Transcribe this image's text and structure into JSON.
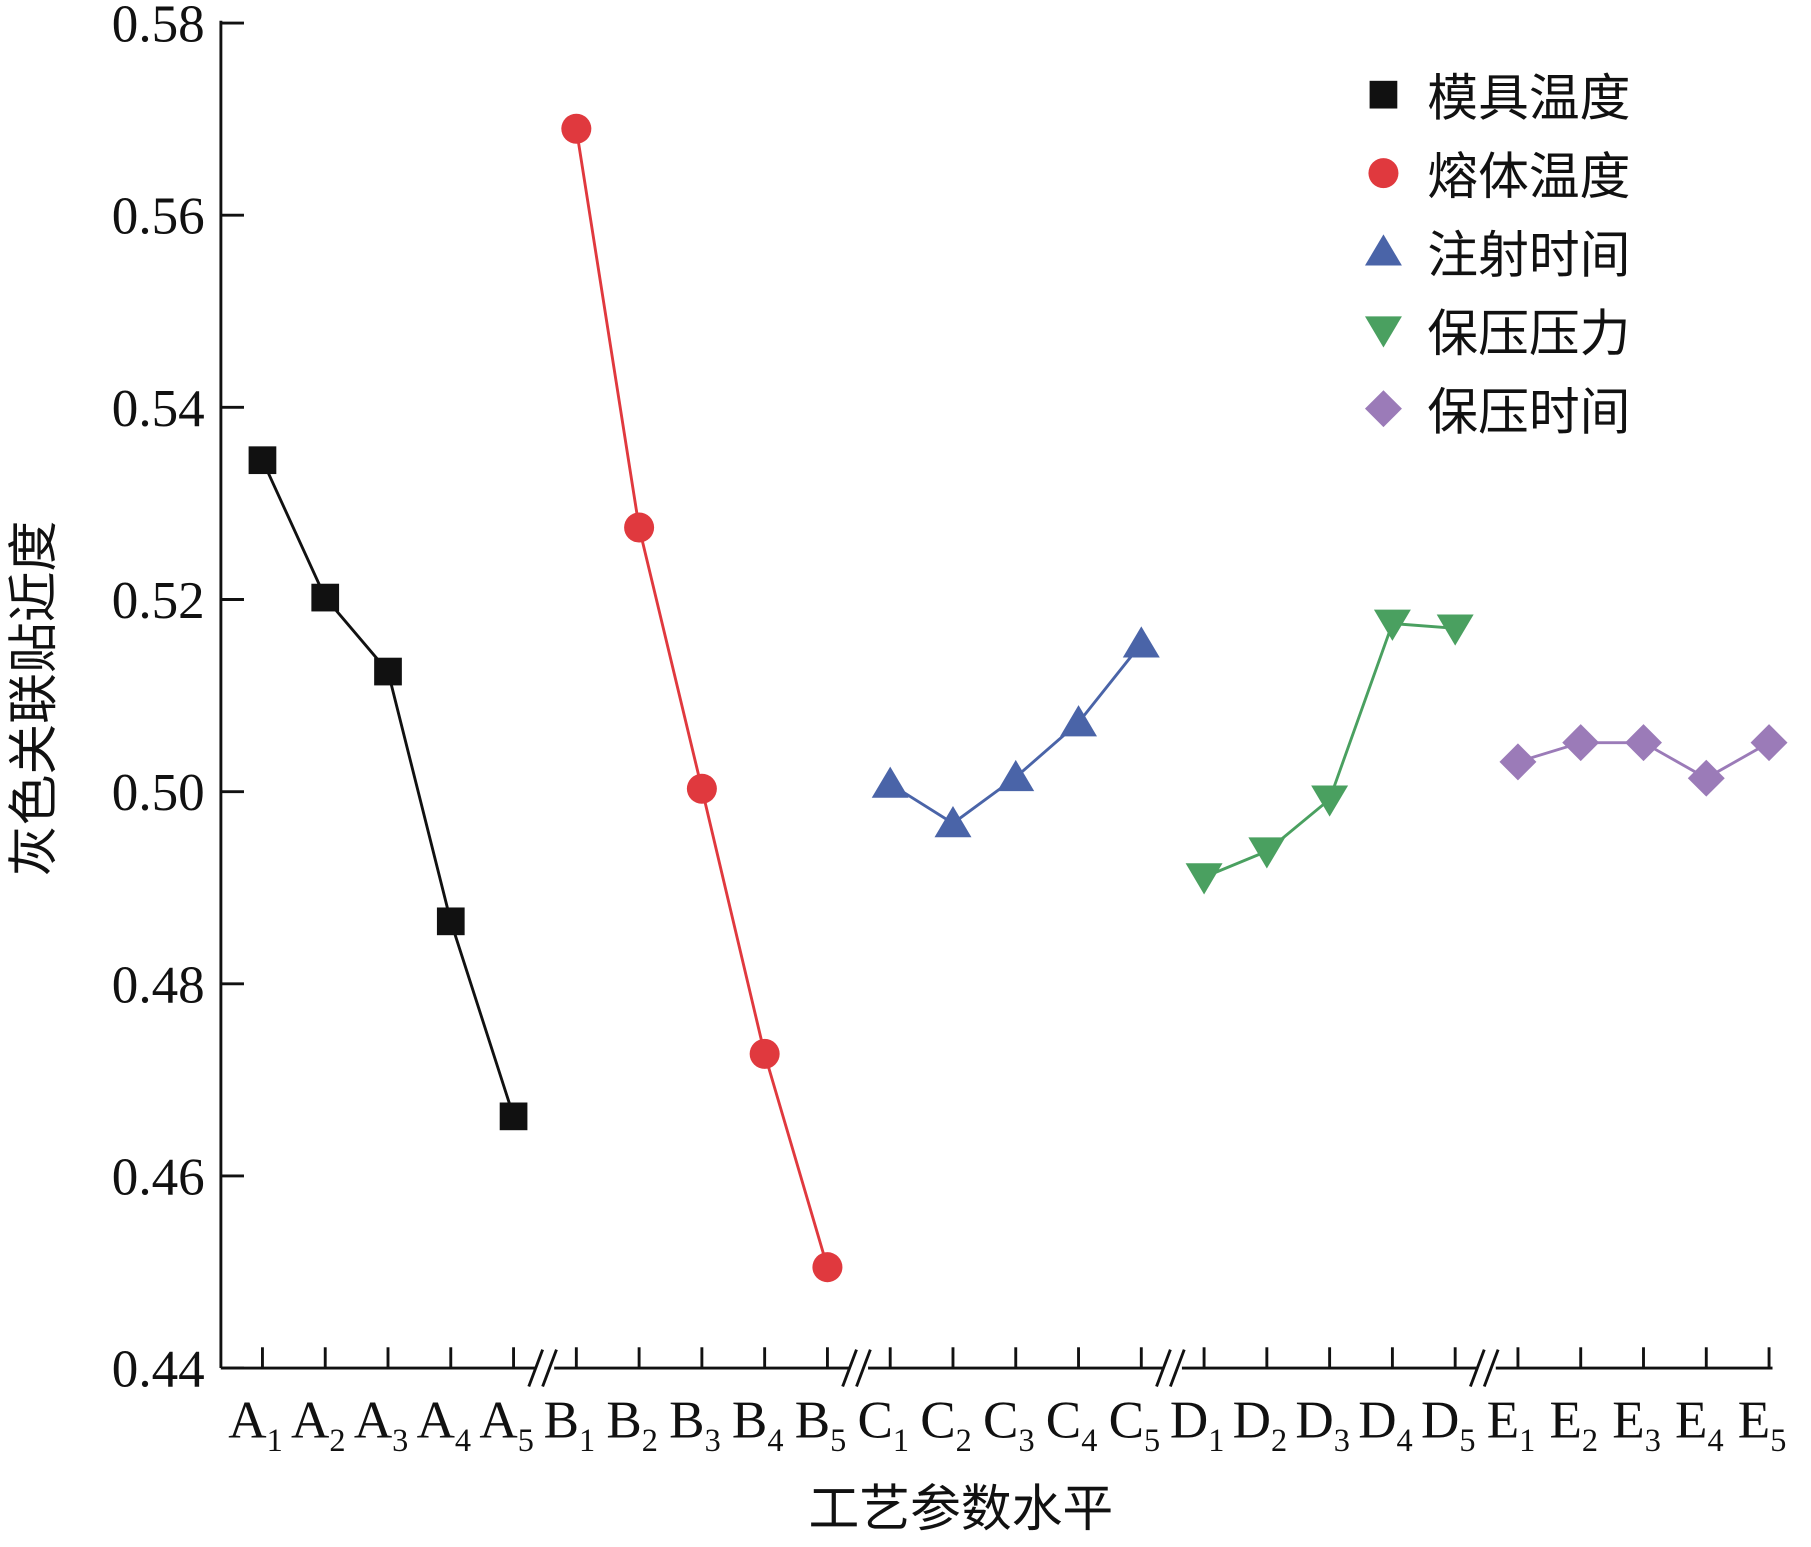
{
  "chart_data": {
    "type": "line",
    "xlabel": "工艺参数水平",
    "ylabel": "灰色关联贴近度",
    "categories": [
      "A1",
      "A2",
      "A3",
      "A4",
      "A5",
      "B1",
      "B2",
      "B3",
      "B4",
      "B5",
      "C1",
      "C2",
      "C3",
      "C4",
      "C5",
      "D1",
      "D2",
      "D3",
      "D4",
      "D5",
      "E1",
      "E2",
      "E3",
      "E4",
      "E5"
    ],
    "ylim": [
      0.44,
      0.58
    ],
    "yticks": [
      0.44,
      0.46,
      0.48,
      0.5,
      0.52,
      0.54,
      0.56,
      0.58
    ],
    "yticks_labels": [
      "0.44",
      "0.46",
      "0.48",
      "0.50",
      "0.52",
      "0.54",
      "0.56",
      "0.58"
    ],
    "legend": "upper right",
    "series": [
      {
        "name": "模具温度",
        "color": "#111111",
        "marker": "square",
        "values": [
          0.5345,
          0.5202,
          0.5125,
          0.4865,
          0.4662,
          null,
          null,
          null,
          null,
          null,
          null,
          null,
          null,
          null,
          null,
          null,
          null,
          null,
          null,
          null,
          null,
          null,
          null,
          null,
          null
        ]
      },
      {
        "name": "熔体温度",
        "color": "#e0393e",
        "marker": "circle",
        "values": [
          null,
          null,
          null,
          null,
          null,
          0.569,
          0.5275,
          0.5003,
          0.4727,
          0.4505,
          null,
          null,
          null,
          null,
          null,
          null,
          null,
          null,
          null,
          null,
          null,
          null,
          null,
          null,
          null
        ]
      },
      {
        "name": "注射时间",
        "color": "#4a64a8",
        "marker": "triangle-up",
        "values": [
          null,
          null,
          null,
          null,
          null,
          null,
          null,
          null,
          null,
          null,
          0.5008,
          0.4967,
          0.5015,
          0.5072,
          0.5154,
          null,
          null,
          null,
          null,
          null,
          null,
          null,
          null,
          null,
          null
        ]
      },
      {
        "name": "保压压力",
        "color": "#4aa060",
        "marker": "triangle-down",
        "values": [
          null,
          null,
          null,
          null,
          null,
          null,
          null,
          null,
          null,
          null,
          null,
          null,
          null,
          null,
          null,
          0.4911,
          0.4938,
          0.4992,
          0.5175,
          0.517,
          null,
          null,
          null,
          null,
          null
        ]
      },
      {
        "name": "保压时间",
        "color": "#9b7bb8",
        "marker": "diamond",
        "values": [
          null,
          null,
          null,
          null,
          null,
          null,
          null,
          null,
          null,
          null,
          null,
          null,
          null,
          null,
          null,
          null,
          null,
          null,
          null,
          null,
          0.5031,
          0.5051,
          0.5051,
          0.5014,
          0.5051
        ]
      }
    ]
  }
}
